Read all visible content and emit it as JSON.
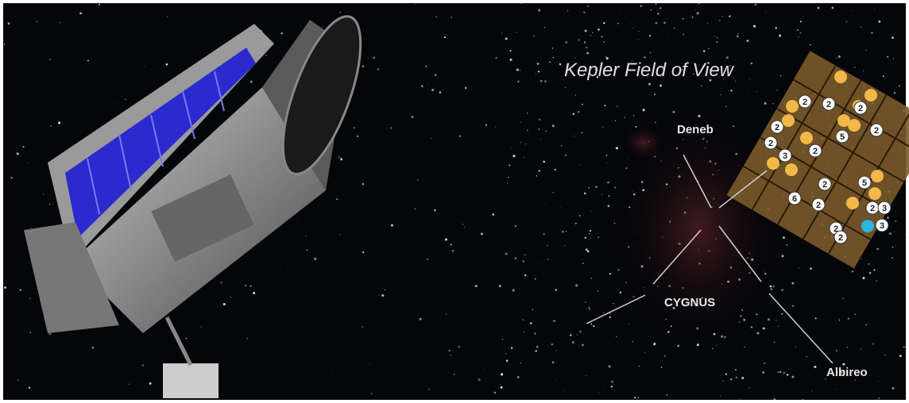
{
  "title": "Kepler Field of View",
  "stars": [
    "Deneb",
    "CYGNUS",
    "Albireo"
  ],
  "badges": [
    "2",
    "2",
    "2",
    "2",
    "2",
    "3",
    "2",
    "5",
    "2",
    "2",
    "5",
    "6",
    "2",
    "2",
    "3",
    "2",
    "2",
    "3"
  ]
}
